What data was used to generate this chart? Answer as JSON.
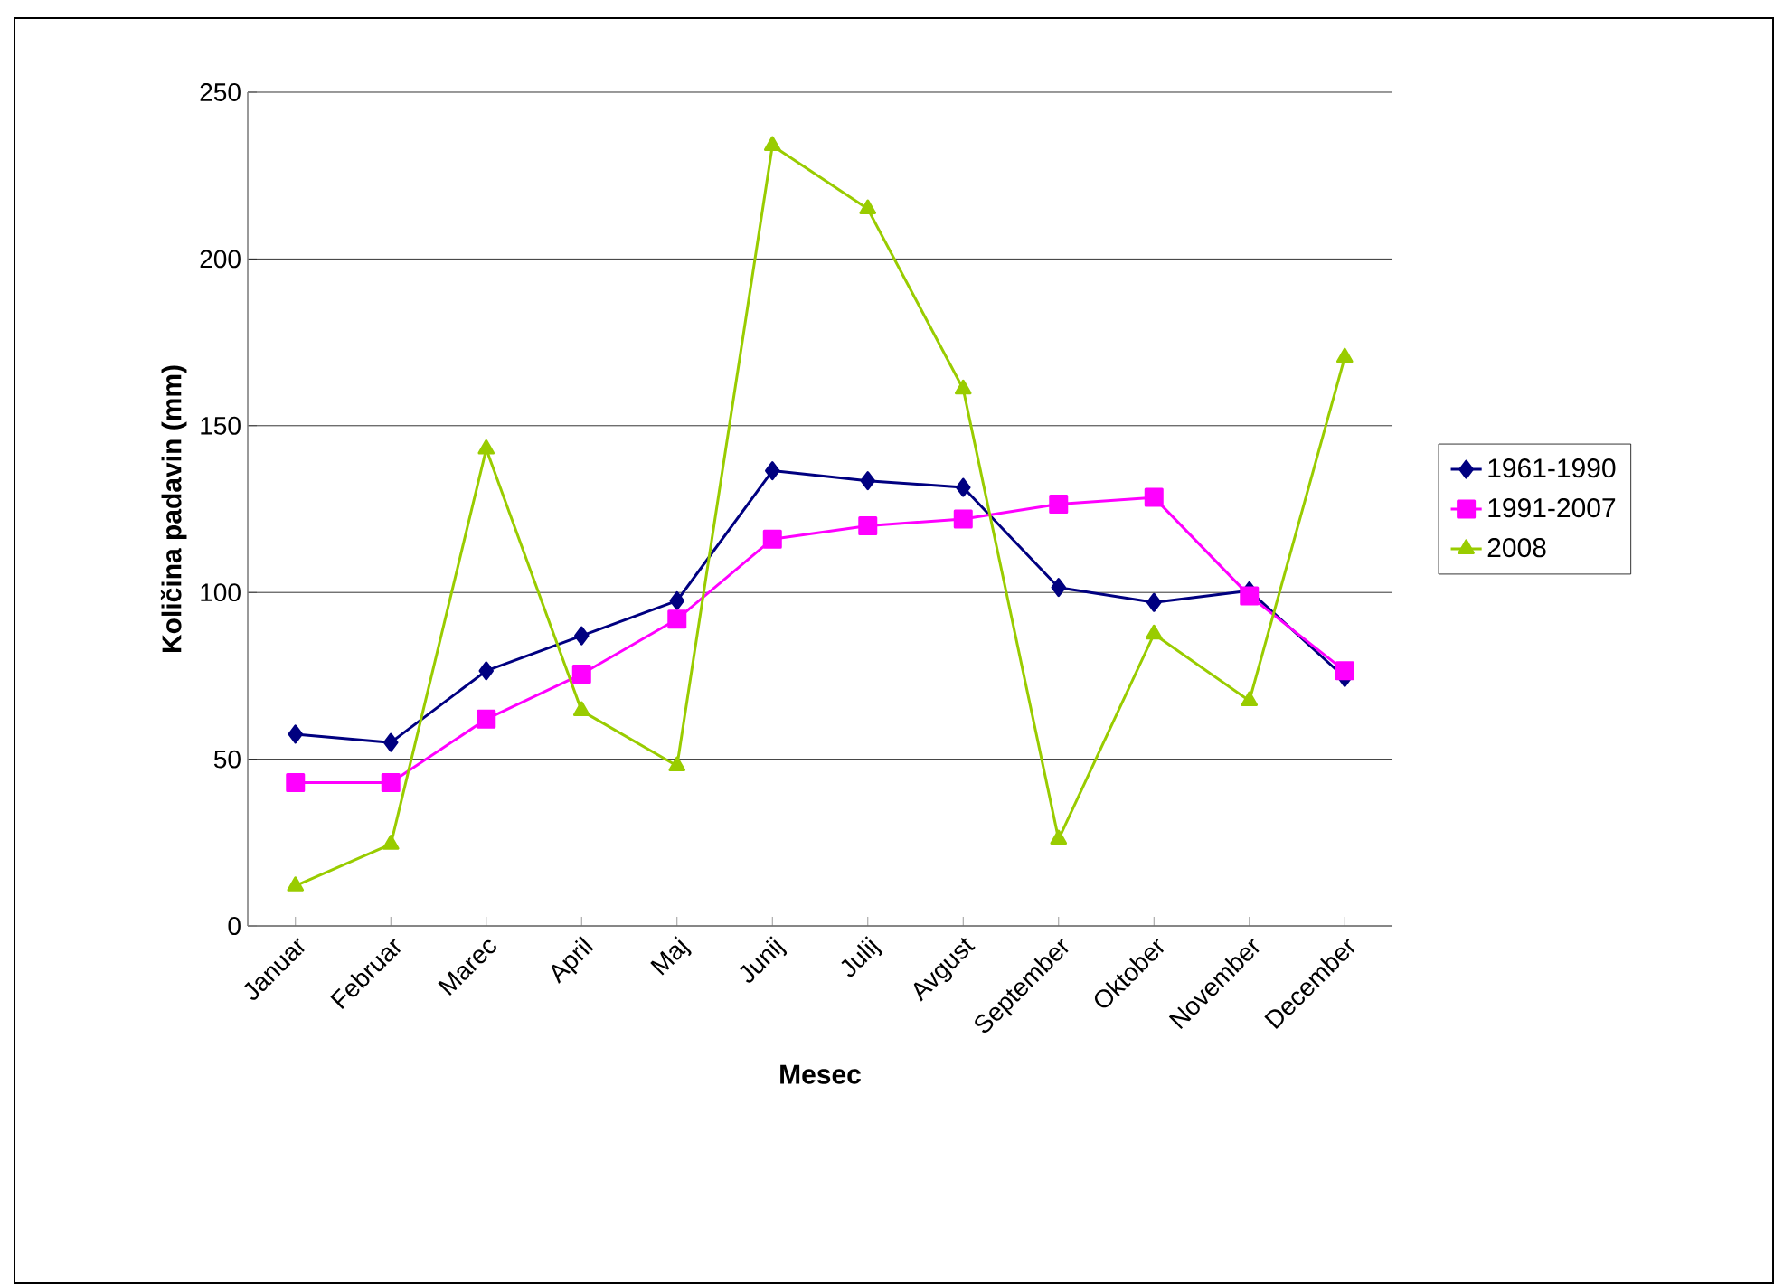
{
  "chart_data": {
    "type": "line",
    "xlabel": "Mesec",
    "ylabel": "Količina padavin (mm)",
    "categories": [
      "Januar",
      "Februar",
      "Marec",
      "April",
      "Maj",
      "Junij",
      "Julij",
      "Avgust",
      "September",
      "Oktober",
      "November",
      "December"
    ],
    "series": [
      {
        "name": "1961-1990",
        "color": "#000080",
        "marker": "diamond",
        "values": [
          57.5,
          55,
          76.5,
          87,
          97.5,
          136.5,
          133.5,
          131.5,
          101.5,
          97,
          100.5,
          74.5
        ]
      },
      {
        "name": "1991-2007",
        "color": "#ff00ff",
        "marker": "square",
        "values": [
          43,
          43,
          62,
          75.5,
          92,
          116,
          120,
          122,
          126.5,
          128.5,
          99,
          76.5
        ]
      },
      {
        "name": "2008",
        "color": "#99cc00",
        "marker": "triangle",
        "values": [
          12,
          24.5,
          143,
          64.5,
          48,
          234,
          215,
          161,
          26,
          87.5,
          67.5,
          170.5
        ]
      }
    ],
    "ylim": [
      0,
      250
    ],
    "yticks": [
      0,
      50,
      100,
      150,
      200,
      250
    ],
    "grid": "y",
    "legend": "right"
  }
}
